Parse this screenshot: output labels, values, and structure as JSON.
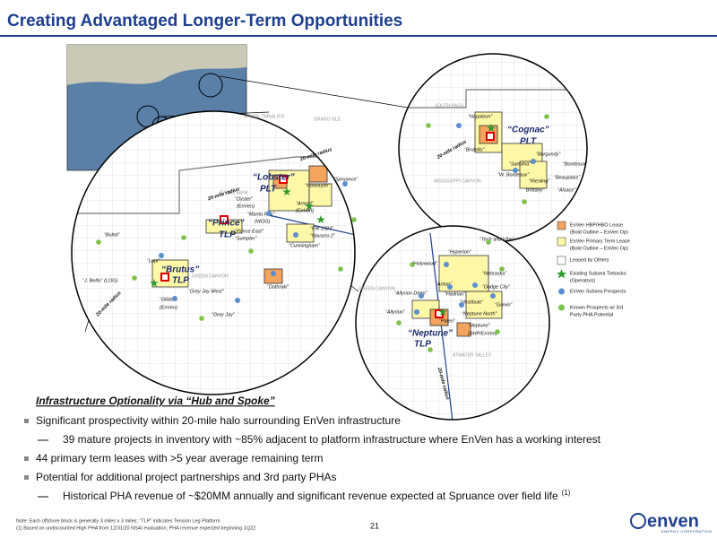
{
  "header": {
    "title": "Creating Advantaged Longer-Term Opportunities"
  },
  "map": {
    "left": {
      "labels": [
        "“Lobster”",
        "PLT",
        "“Oyster”",
        "(EnVen)",
        "“Manta Ray”",
        "(WOG)",
        "“Arnold”",
        "(EnVen)",
        "“Spruance”",
        "“Nowouyin”",
        "“Prince”",
        "TLP",
        "“Prince East”",
        "“Sumpter”",
        "“FW 1024”",
        "“Navarro 2”",
        "“Cunningham”",
        "“Bufeti”",
        "“Lupi”",
        "“Brutus”",
        "TLP",
        "“J. Bellis” (LOG)",
        "“Grey Jay West”",
        "“Glider”",
        "(EnVen)",
        "“Grey Jay”",
        "“Dothraki”",
        "SOUTH TIMBALIER",
        "GRAND ISLE",
        "EWING BANK",
        "GREEN CANYON",
        "20-mile radius",
        "20-mile radius",
        "20-mile radius"
      ]
    },
    "top_right": {
      "labels": [
        "“Cognac”",
        "PLT",
        "“Napoleon”",
        "“Brutello”",
        "“Sanoma”",
        "“Burgundy”",
        "“Bordeaux”",
        "“W. Bordeaux”",
        "“Riesling”",
        "“Beaujolais”",
        "“Brittany”",
        "“Alsace”",
        "SOUTH PASS",
        "MISSISSIPPI CANYON",
        "20-mile radius"
      ]
    },
    "bottom_right": {
      "labels": [
        "“Neptune”",
        "TLP",
        "“Neptune”",
        "(BHP/EnVen)",
        "“Tech and Vibe”",
        "“Hyperion”",
        "“Holywood”",
        "“Nebraska”",
        "“Anton”",
        "“Dodge City”",
        "“Hadrian”",
        "“Allyrion Deep”",
        "“Allyrion”",
        "“Neptune North”",
        "“Palen”",
        "“Vestibule”",
        "“Galvin”",
        "GREEN CANYON",
        "ATWATER VALLEY",
        "20-mile radius"
      ]
    }
  },
  "legend": {
    "items": [
      {
        "lines": [
          "EnVen HBP/HBO Lease",
          "(Bold Outline – EnVen Op)"
        ]
      },
      {
        "lines": [
          "EnVen Primary Term Lease",
          "(Bold Outline – EnVen Op)"
        ]
      },
      {
        "lines": [
          "Leased by Others"
        ]
      },
      {
        "lines": [
          "Existing Subsea Tiebacks",
          "(Operators)"
        ]
      },
      {
        "lines": [
          "EnVen Subsea Prospects"
        ]
      },
      {
        "lines": [
          "Known Prospects w/ 3rd",
          "Party PHA Potential"
        ]
      }
    ]
  },
  "body": {
    "heading": "Infrastructure Optionality via “Hub and Spoke”",
    "bullets": [
      {
        "text": "Significant prospectivity within 20-mile halo surrounding EnVen infrastructure",
        "sub": [
          "39 mature projects in inventory with ~85% adjacent to platform infrastructure where EnVen has a working interest"
        ]
      },
      {
        "text": "44 primary term leases with >5 year average remaining term",
        "sub": []
      },
      {
        "text": "Potential for additional project partnerships and 3rd party PHAs",
        "sub": [
          "Historical PHA revenue of ~$20MM annually and significant revenue expected at Spruance over field life"
        ]
      }
    ],
    "superscript": "(1)"
  },
  "footnotes": [
    "Note: Each offshore block is generally 3 miles x 3 miles; “TLP” indicates Tension Leg Platform",
    "(1)  Based on undiscounted High PHA from 12/31/20 NSAI evaluation; PHA revenue expected beginning 1Q22"
  ],
  "page_number": "21",
  "logo": {
    "name": "enven",
    "tagline": "ENERGY CORPORATION"
  }
}
